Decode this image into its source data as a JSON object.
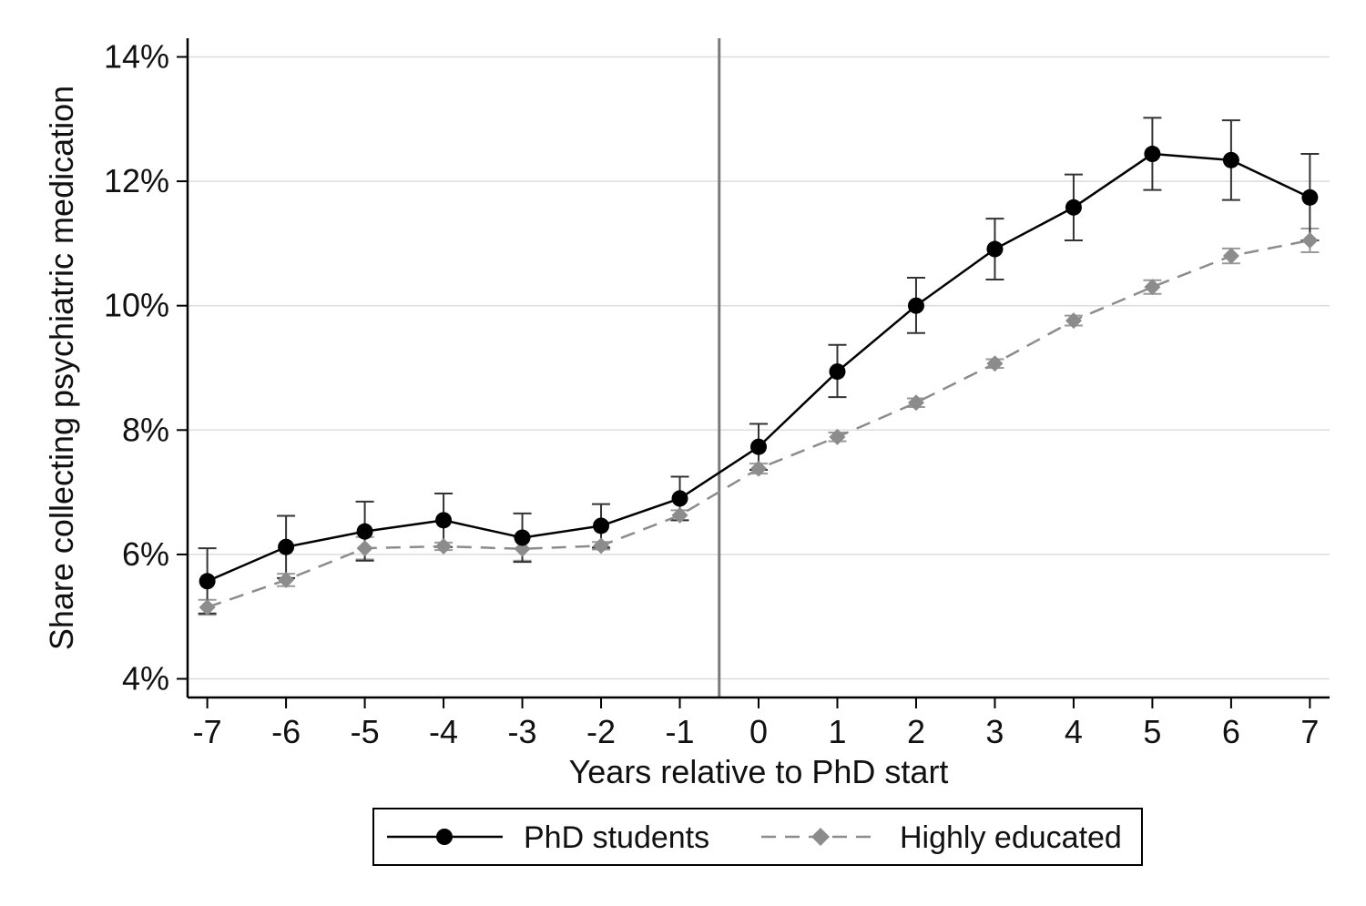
{
  "chart_data": {
    "type": "line",
    "title": "",
    "xlabel": "Years relative to PhD start",
    "ylabel": "Share collecting psychiatric medication",
    "x": [
      -7,
      -6,
      -5,
      -4,
      -3,
      -2,
      -1,
      0,
      1,
      2,
      3,
      4,
      5,
      6,
      7
    ],
    "xticks": [
      "-7",
      "-6",
      "-5",
      "-4",
      "-3",
      "-2",
      "-1",
      "0",
      "1",
      "2",
      "3",
      "4",
      "5",
      "6",
      "7"
    ],
    "xlim": [
      -7.25,
      7.25
    ],
    "yticks": [
      "4%",
      "6%",
      "8%",
      "10%",
      "12%",
      "14%"
    ],
    "ytick_values": [
      4,
      6,
      8,
      10,
      12,
      14
    ],
    "ylim": [
      3.7,
      14.3
    ],
    "reference_line_x": -0.5,
    "grid": "horizontal",
    "legend_position": "bottom",
    "series": [
      {
        "name": "PhD students",
        "color": "#000000",
        "line_style": "solid",
        "marker": "circle",
        "values": [
          5.57,
          6.12,
          6.37,
          6.55,
          6.27,
          6.46,
          6.9,
          7.73,
          8.94,
          10.0,
          10.91,
          11.58,
          12.44,
          12.34,
          11.74
        ],
        "lower": [
          5.05,
          5.62,
          5.9,
          6.12,
          5.88,
          6.11,
          6.55,
          7.36,
          8.53,
          9.56,
          10.42,
          11.05,
          11.86,
          11.7,
          11.05
        ],
        "upper": [
          6.1,
          6.62,
          6.85,
          6.98,
          6.66,
          6.81,
          7.25,
          8.1,
          9.37,
          10.45,
          11.4,
          12.11,
          13.02,
          12.98,
          12.44
        ]
      },
      {
        "name": "Highly educated",
        "color": "#8c8c8c",
        "line_style": "dashed",
        "marker": "diamond",
        "values": [
          5.15,
          5.59,
          6.1,
          6.13,
          6.09,
          6.14,
          6.63,
          7.38,
          7.89,
          8.44,
          9.07,
          9.76,
          10.3,
          10.8,
          11.05
        ],
        "lower": [
          5.03,
          5.49,
          5.92,
          6.07,
          5.9,
          6.08,
          6.55,
          7.3,
          7.82,
          8.37,
          9.0,
          9.68,
          10.19,
          10.68,
          10.86
        ],
        "upper": [
          5.27,
          5.69,
          6.28,
          6.19,
          6.28,
          6.2,
          6.71,
          7.46,
          7.96,
          8.51,
          9.14,
          9.84,
          10.41,
          10.92,
          11.24
        ]
      }
    ]
  }
}
